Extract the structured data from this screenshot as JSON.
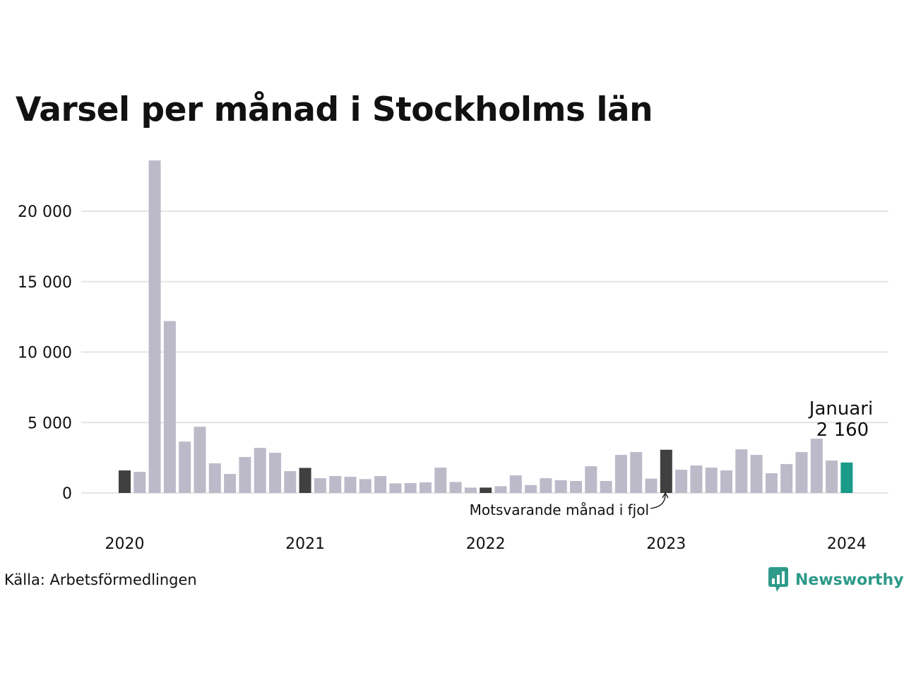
{
  "title": "Varsel per månad i Stockholms län",
  "source": "Källa: Arbetsförmedlingen",
  "brand": {
    "name": "Newsworthy",
    "color": "#2e9a89",
    "icon": "newsworthy-logo-icon"
  },
  "colors": {
    "regular": "#bcbac9",
    "same_month_prev_years": "#404040",
    "current": "#1a9a89",
    "grid": "#e4e4e4"
  },
  "annotations": {
    "current_month": "Januari",
    "current_value": "2 160",
    "comparison": "Motsvarande månad i fjol"
  },
  "chart_data": {
    "type": "bar",
    "x_ticks": [
      "2020",
      "2021",
      "2022",
      "2023",
      "2024"
    ],
    "y_ticks": [
      "0",
      "5 000",
      "10 000",
      "15 000",
      "20 000"
    ],
    "ylim": [
      0,
      24000
    ],
    "grid": true,
    "categories": [
      "2020-01",
      "2020-02",
      "2020-03",
      "2020-04",
      "2020-05",
      "2020-06",
      "2020-07",
      "2020-08",
      "2020-09",
      "2020-10",
      "2020-11",
      "2020-12",
      "2021-01",
      "2021-02",
      "2021-03",
      "2021-04",
      "2021-05",
      "2021-06",
      "2021-07",
      "2021-08",
      "2021-09",
      "2021-10",
      "2021-11",
      "2021-12",
      "2022-01",
      "2022-02",
      "2022-03",
      "2022-04",
      "2022-05",
      "2022-06",
      "2022-07",
      "2022-08",
      "2022-09",
      "2022-10",
      "2022-11",
      "2022-12",
      "2023-01",
      "2023-02",
      "2023-03",
      "2023-04",
      "2023-05",
      "2023-06",
      "2023-07",
      "2023-08",
      "2023-09",
      "2023-10",
      "2023-11",
      "2023-12",
      "2024-01"
    ],
    "values": [
      1600,
      1500,
      23600,
      12200,
      3650,
      4700,
      2100,
      1350,
      2550,
      3200,
      2850,
      1550,
      1780,
      1050,
      1200,
      1150,
      980,
      1200,
      680,
      700,
      750,
      1800,
      780,
      380,
      380,
      480,
      1250,
      560,
      1050,
      900,
      850,
      1900,
      850,
      2700,
      2900,
      1020,
      3070,
      1650,
      1950,
      1800,
      1600,
      3100,
      2700,
      1400,
      2050,
      2900,
      3850,
      2300,
      2160
    ]
  }
}
